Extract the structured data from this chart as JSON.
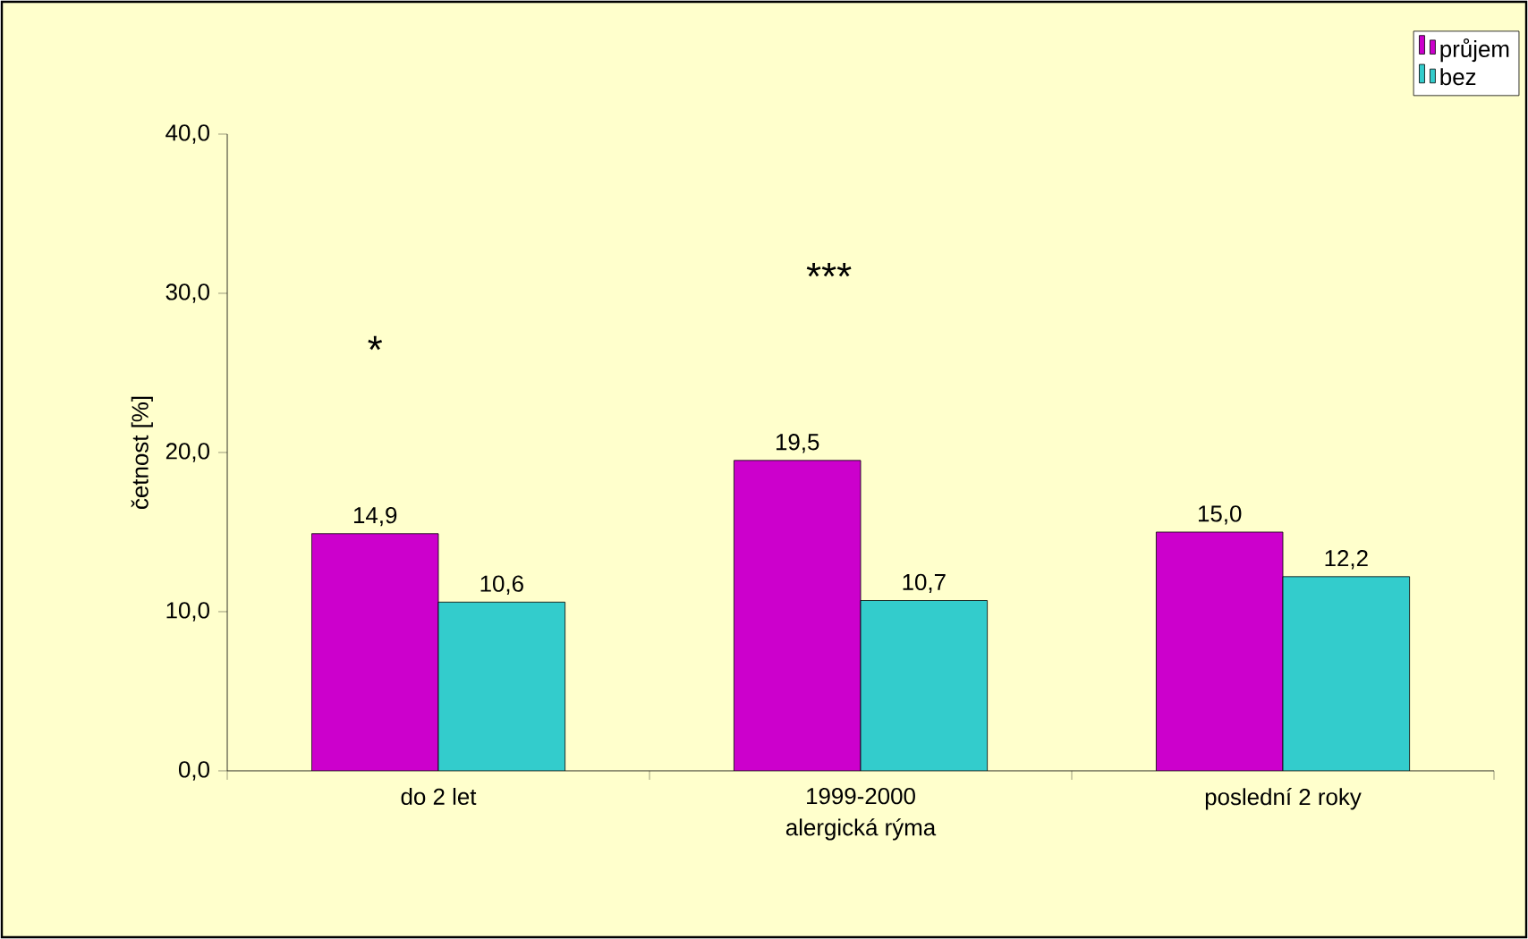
{
  "chart_data": {
    "type": "bar",
    "xlabel": "alergická rýma",
    "ylabel": "četnost [%]",
    "categories": [
      "do 2 let",
      "1999-2000",
      "poslední 2 roky"
    ],
    "series": [
      {
        "name": "průjem",
        "color": "#cc00cc",
        "values": [
          14.9,
          19.5,
          15.0
        ],
        "value_labels": [
          "14,9",
          "19,5",
          "15,0"
        ]
      },
      {
        "name": "bez",
        "color": "#33cccc",
        "values": [
          10.6,
          10.7,
          12.2
        ],
        "value_labels": [
          "10,6",
          "10,7",
          "12,2"
        ]
      }
    ],
    "ylim": [
      0,
      40
    ],
    "yticks": [
      {
        "value": 0,
        "label": "0,0"
      },
      {
        "value": 10,
        "label": "10,0"
      },
      {
        "value": 20,
        "label": "20,0"
      },
      {
        "value": 30,
        "label": "30,0"
      },
      {
        "value": 40,
        "label": "40,0"
      }
    ],
    "annotations": [
      "*",
      "***"
    ],
    "legend": "top right",
    "grid": false
  }
}
